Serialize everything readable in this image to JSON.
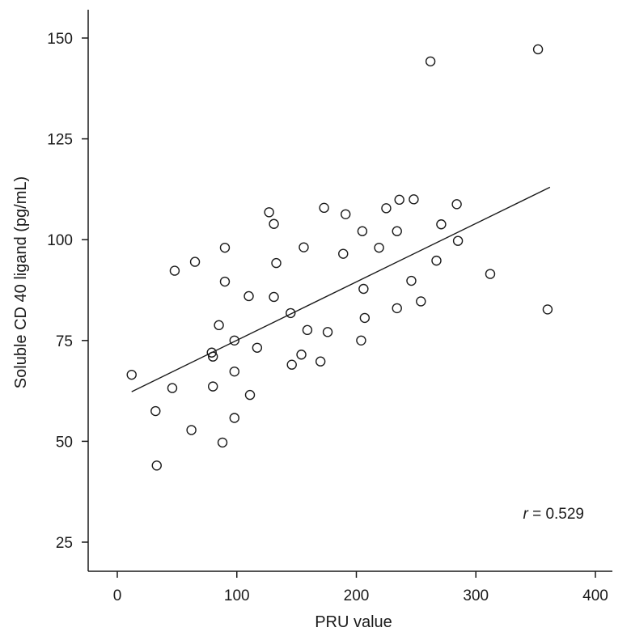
{
  "chart_data": {
    "type": "scatter",
    "xlabel": "PRU value",
    "ylabel": "Soluble CD 40 ligand (pg/mL)",
    "xlim": [
      -25,
      410
    ],
    "ylim": [
      18,
      157
    ],
    "xticks": [
      0,
      100,
      200,
      300,
      400
    ],
    "yticks": [
      25,
      50,
      75,
      100,
      125,
      150
    ],
    "grid": false,
    "annotation": {
      "symbol": "r",
      "text": " = 0.529"
    },
    "fit_line": {
      "x": [
        12,
        362
      ],
      "y": [
        62.3,
        113.0
      ]
    },
    "points": [
      {
        "x": 12,
        "y": 66.5
      },
      {
        "x": 32,
        "y": 57.5
      },
      {
        "x": 33,
        "y": 44
      },
      {
        "x": 46,
        "y": 63.2
      },
      {
        "x": 48,
        "y": 92.3
      },
      {
        "x": 62,
        "y": 52.8
      },
      {
        "x": 65,
        "y": 94.5
      },
      {
        "x": 79,
        "y": 72
      },
      {
        "x": 80,
        "y": 71
      },
      {
        "x": 80,
        "y": 63.6
      },
      {
        "x": 85,
        "y": 78.8
      },
      {
        "x": 88,
        "y": 49.7
      },
      {
        "x": 90,
        "y": 98
      },
      {
        "x": 90,
        "y": 89.6
      },
      {
        "x": 98,
        "y": 75
      },
      {
        "x": 98,
        "y": 67.3
      },
      {
        "x": 98,
        "y": 55.8
      },
      {
        "x": 110,
        "y": 86
      },
      {
        "x": 111,
        "y": 61.5
      },
      {
        "x": 117,
        "y": 73.2
      },
      {
        "x": 127,
        "y": 106.8
      },
      {
        "x": 131,
        "y": 103.9
      },
      {
        "x": 131,
        "y": 85.8
      },
      {
        "x": 133,
        "y": 94.2
      },
      {
        "x": 145,
        "y": 81.8
      },
      {
        "x": 146,
        "y": 69
      },
      {
        "x": 154,
        "y": 71.5
      },
      {
        "x": 156,
        "y": 98.1
      },
      {
        "x": 159,
        "y": 77.6
      },
      {
        "x": 170,
        "y": 69.8
      },
      {
        "x": 173,
        "y": 107.9
      },
      {
        "x": 176,
        "y": 77.1
      },
      {
        "x": 189,
        "y": 96.5
      },
      {
        "x": 191,
        "y": 106.3
      },
      {
        "x": 204,
        "y": 75
      },
      {
        "x": 205,
        "y": 102.1
      },
      {
        "x": 206,
        "y": 87.8
      },
      {
        "x": 207,
        "y": 80.6
      },
      {
        "x": 219,
        "y": 98
      },
      {
        "x": 225,
        "y": 107.8
      },
      {
        "x": 234,
        "y": 102.1
      },
      {
        "x": 234,
        "y": 83
      },
      {
        "x": 236,
        "y": 109.9
      },
      {
        "x": 246,
        "y": 89.8
      },
      {
        "x": 248,
        "y": 110
      },
      {
        "x": 254,
        "y": 84.7
      },
      {
        "x": 262,
        "y": 144.2
      },
      {
        "x": 267,
        "y": 94.8
      },
      {
        "x": 271,
        "y": 103.8
      },
      {
        "x": 284,
        "y": 108.8
      },
      {
        "x": 285,
        "y": 99.7
      },
      {
        "x": 312,
        "y": 91.5
      },
      {
        "x": 352,
        "y": 147.2
      },
      {
        "x": 360,
        "y": 82.7
      }
    ]
  }
}
